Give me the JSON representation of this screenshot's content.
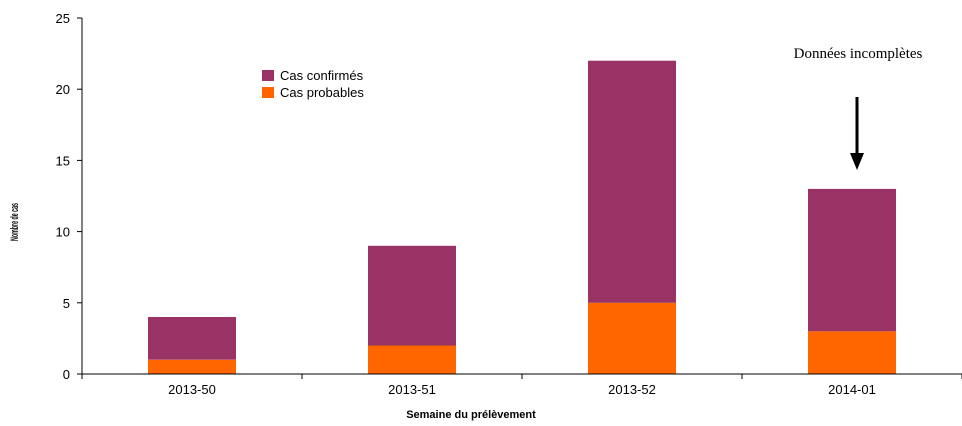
{
  "chart_data": {
    "type": "bar",
    "stacked": true,
    "categories": [
      "2013-50",
      "2013-51",
      "2013-52",
      "2014-01"
    ],
    "series": [
      {
        "name": "Cas probables",
        "values": [
          1,
          2,
          5,
          3
        ],
        "color": "#FF6600"
      },
      {
        "name": "Cas confirmés",
        "values": [
          3,
          7,
          17,
          10
        ],
        "color": "#993366"
      }
    ],
    "legend_order": [
      "Cas confirmés",
      "Cas probables"
    ],
    "xlabel": "Semaine du prélèvement",
    "ylabel": "Nombre de cas",
    "ylim": [
      0,
      25
    ],
    "yticks": [
      0,
      5,
      10,
      15,
      20,
      25
    ],
    "grid": false,
    "legend_position": "top-left",
    "annotation": {
      "text": "Données incomplètes",
      "category": "2014-01",
      "arrow": "down"
    }
  }
}
